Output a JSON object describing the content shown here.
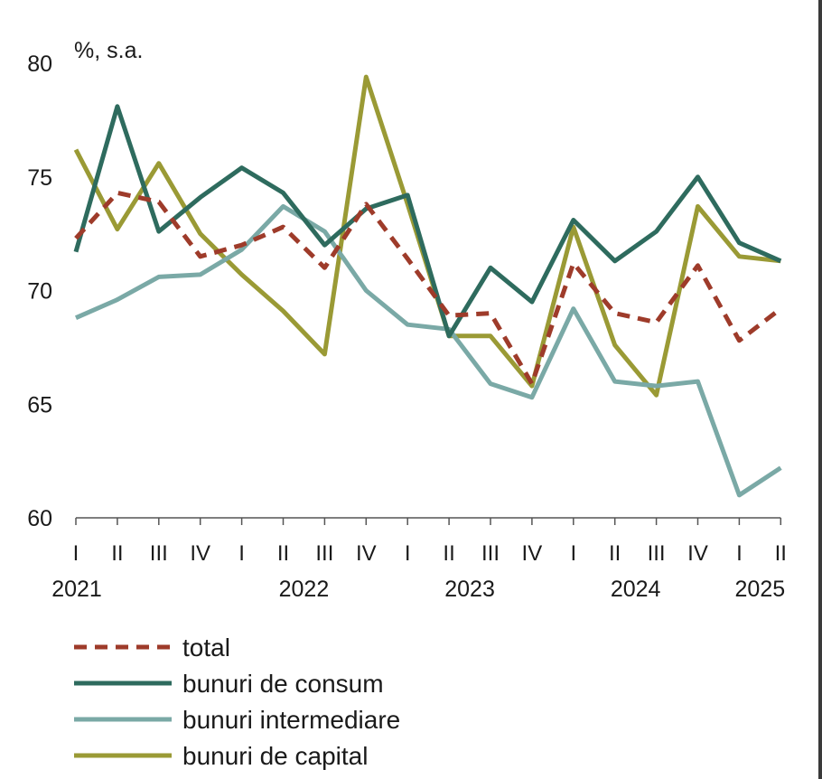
{
  "chart_data": {
    "type": "line",
    "unit_label": "%, s.a.",
    "y_ticks": [
      "60",
      "65",
      "70",
      "75",
      "80"
    ],
    "ylim": [
      60,
      80
    ],
    "x": [
      "I",
      "II",
      "III",
      "IV",
      "I",
      "II",
      "III",
      "IV",
      "I",
      "II",
      "III",
      "IV",
      "I",
      "II",
      "III",
      "IV",
      "I",
      "II"
    ],
    "years": [
      {
        "label": "2021",
        "quarter_index": 0
      },
      {
        "label": "2022",
        "quarter_index": 4
      },
      {
        "label": "2023",
        "quarter_index": 8
      },
      {
        "label": "2024",
        "quarter_index": 12
      },
      {
        "label": "2025",
        "quarter_index": 16
      }
    ],
    "series": [
      {
        "name": "total",
        "color": "#9e3b2a",
        "dashed": true,
        "values": [
          72.3,
          74.3,
          73.9,
          71.5,
          72.0,
          72.8,
          71.0,
          73.8,
          71.4,
          68.9,
          69.0,
          65.9,
          71.2,
          69.0,
          68.6,
          71.1,
          67.8,
          69.2
        ]
      },
      {
        "name": "bunuri de consum",
        "color": "#2e6b5e",
        "dashed": false,
        "values": [
          71.7,
          78.1,
          72.6,
          74.1,
          75.4,
          74.3,
          72.0,
          73.6,
          74.2,
          68.0,
          71.0,
          69.5,
          73.1,
          71.3,
          72.6,
          75.0,
          72.1,
          71.3
        ]
      },
      {
        "name": "bunuri intermediare",
        "color": "#7aa9a6",
        "dashed": false,
        "values": [
          68.8,
          69.6,
          70.6,
          70.7,
          71.8,
          73.7,
          72.6,
          70.0,
          68.5,
          68.3,
          65.9,
          65.3,
          69.2,
          66.0,
          65.8,
          66.0,
          61.0,
          62.2
        ]
      },
      {
        "name": "bunuri de capital",
        "color": "#9a9a35",
        "dashed": false,
        "values": [
          76.2,
          72.7,
          75.6,
          72.5,
          70.7,
          69.1,
          67.2,
          79.4,
          73.8,
          68.0,
          68.0,
          65.8,
          72.8,
          67.6,
          65.4,
          73.7,
          71.5,
          71.3
        ]
      }
    ],
    "legend_position": "bottom-left",
    "grid": false
  }
}
